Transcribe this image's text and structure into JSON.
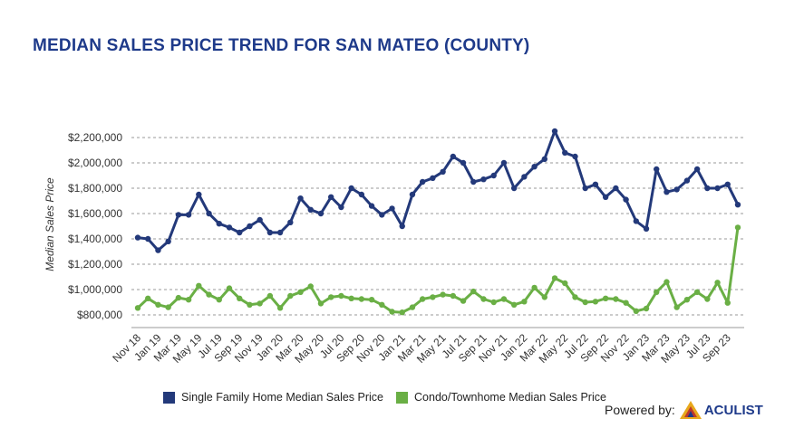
{
  "title": "MEDIAN SALES PRICE TREND FOR SAN MATEO (COUNTY)",
  "chart_data": {
    "type": "line",
    "title": "MEDIAN SALES PRICE TREND FOR SAN MATEO (COUNTY)",
    "ylabel": "Median Sales Price",
    "xlabel": "",
    "ylim": [
      700000,
      2300000
    ],
    "yticks": [
      800000,
      1000000,
      1200000,
      1400000,
      1600000,
      1800000,
      2000000,
      2200000
    ],
    "ytick_labels": [
      "$800,000",
      "$1,000,000",
      "$1,200,000",
      "$1,400,000",
      "$1,600,000",
      "$1,800,000",
      "$2,000,000",
      "$2,200,000"
    ],
    "grid": true,
    "legend_position": "bottom",
    "x_tick_labels": [
      "Nov 18",
      "Jan 19",
      "Mar 19",
      "May 19",
      "Jul 19",
      "Sep 19",
      "Nov 19",
      "Jan 20",
      "Mar 20",
      "May 20",
      "Jul 20",
      "Sep 20",
      "Nov 20",
      "Jan 21",
      "Mar 21",
      "May 21",
      "Jul 21",
      "Sep 21",
      "Nov 21",
      "Jan 22",
      "Mar 22",
      "May 22",
      "Jul 22",
      "Sep 22",
      "Nov 22",
      "Jan 23",
      "Mar 23",
      "May 23",
      "Jul 23",
      "Sep 23"
    ],
    "x": [
      "Nov 18",
      "Dec 18",
      "Jan 19",
      "Feb 19",
      "Mar 19",
      "Apr 19",
      "May 19",
      "Jun 19",
      "Jul 19",
      "Aug 19",
      "Sep 19",
      "Oct 19",
      "Nov 19",
      "Dec 19",
      "Jan 20",
      "Feb 20",
      "Mar 20",
      "Apr 20",
      "May 20",
      "Jun 20",
      "Jul 20",
      "Aug 20",
      "Sep 20",
      "Oct 20",
      "Nov 20",
      "Dec 20",
      "Jan 21",
      "Feb 21",
      "Mar 21",
      "Apr 21",
      "May 21",
      "Jun 21",
      "Jul 21",
      "Aug 21",
      "Sep 21",
      "Oct 21",
      "Nov 21",
      "Dec 21",
      "Jan 22",
      "Feb 22",
      "Mar 22",
      "Apr 22",
      "May 22",
      "Jun 22",
      "Jul 22",
      "Aug 22",
      "Sep 22",
      "Oct 22",
      "Nov 22",
      "Dec 22",
      "Jan 23",
      "Feb 23",
      "Mar 23",
      "Apr 23",
      "May 23",
      "Jun 23",
      "Jul 23",
      "Aug 23",
      "Sep 23",
      "Oct 23"
    ],
    "series": [
      {
        "name": "Single Family Home Median Sales Price",
        "color": "#23397a",
        "values": [
          1410000,
          1400000,
          1310000,
          1380000,
          1590000,
          1590000,
          1750000,
          1600000,
          1520000,
          1490000,
          1450000,
          1500000,
          1550000,
          1450000,
          1450000,
          1530000,
          1720000,
          1630000,
          1600000,
          1730000,
          1650000,
          1800000,
          1750000,
          1660000,
          1590000,
          1640000,
          1500000,
          1750000,
          1850000,
          1880000,
          1930000,
          2050000,
          2000000,
          1850000,
          1870000,
          1900000,
          2000000,
          1800000,
          1890000,
          1970000,
          2030000,
          2250000,
          2080000,
          2050000,
          1800000,
          1830000,
          1730000,
          1800000,
          1710000,
          1540000,
          1480000,
          1950000,
          1770000,
          1790000,
          1860000,
          1950000,
          1800000,
          1800000,
          1830000,
          1670000
        ]
      },
      {
        "name": "Condo/Townhome Median Sales Price",
        "color": "#6aaf45",
        "values": [
          855000,
          930000,
          880000,
          860000,
          935000,
          920000,
          1030000,
          960000,
          920000,
          1010000,
          930000,
          880000,
          890000,
          950000,
          855000,
          950000,
          980000,
          1025000,
          890000,
          940000,
          950000,
          930000,
          925000,
          920000,
          880000,
          825000,
          820000,
          860000,
          925000,
          940000,
          960000,
          950000,
          910000,
          985000,
          925000,
          900000,
          925000,
          880000,
          905000,
          1015000,
          940000,
          1090000,
          1050000,
          940000,
          900000,
          905000,
          930000,
          925000,
          895000,
          830000,
          850000,
          980000,
          1060000,
          860000,
          920000,
          980000,
          925000,
          1055000,
          895000,
          1490000
        ]
      }
    ]
  },
  "legend": {
    "items": [
      {
        "label": "Single Family Home Median Sales Price",
        "color": "#23397a"
      },
      {
        "label": "Condo/Townhome Median Sales Price",
        "color": "#6aaf45"
      }
    ]
  },
  "footer": {
    "powered_by": "Powered by:",
    "brand": "ACULIST",
    "logo_icon": "aculist-logo-icon"
  }
}
